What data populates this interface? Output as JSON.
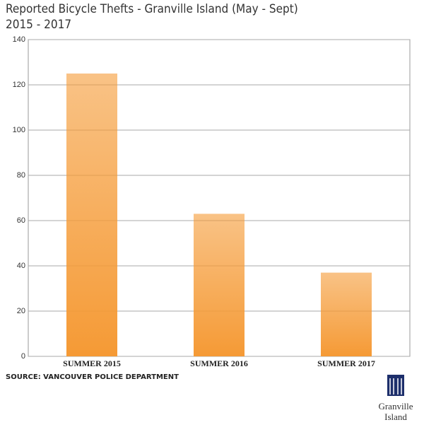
{
  "chart_data": {
    "type": "bar",
    "title": "Reported Bicycle Thefts - Granville Island (May - Sept)",
    "subtitle": "2015 - 2017",
    "categories": [
      "SUMMER 2015",
      "SUMMER 2016",
      "SUMMER 2017"
    ],
    "values": [
      125,
      63,
      37
    ],
    "color": "#f59a35",
    "ylim": [
      0,
      140
    ],
    "yticks": [
      0,
      20,
      40,
      60,
      80,
      100,
      120,
      140
    ],
    "grid": true,
    "source": "SOURCE: VANCOUVER POLICE DEPARTMENT",
    "logo": [
      "Granville",
      "Island"
    ]
  }
}
